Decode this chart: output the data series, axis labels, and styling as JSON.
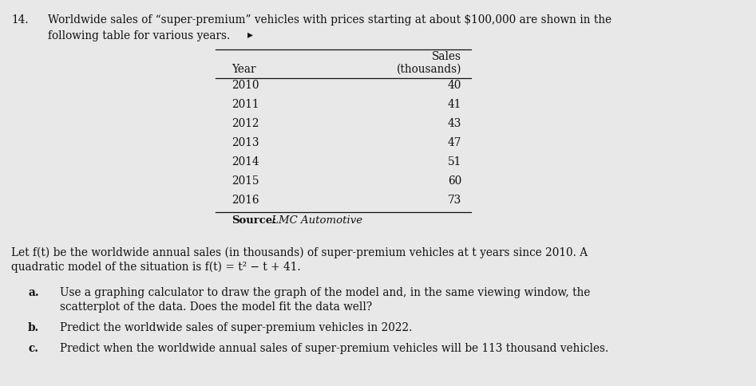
{
  "problem_number": "14.",
  "intro_line1": "Worldwide sales of “super-premium” vehicles with prices starting at about $100,000 are shown in the",
  "intro_line2": "following table for various years.",
  "cursor_symbol": "▸",
  "table_col1_header": "Year",
  "table_col2_header_line1": "Sales",
  "table_col2_header_line2": "(thousands)",
  "table_data": [
    [
      "2010",
      "40"
    ],
    [
      "2011",
      "41"
    ],
    [
      "2012",
      "43"
    ],
    [
      "2013",
      "47"
    ],
    [
      "2014",
      "51"
    ],
    [
      "2015",
      "60"
    ],
    [
      "2016",
      "73"
    ]
  ],
  "source_bold": "Source:",
  "source_italic": " LMC Automotive",
  "body_line1": "Let f(t) be the worldwide annual sales (in thousands) of super-premium vehicles at t years since 2010. A",
  "body_line2": "quadratic model of the situation is f(t) = t² − t + 41.",
  "item_a_label": "a.",
  "item_a_line1": "Use a graphing calculator to draw the graph of the model and, in the same viewing window, the",
  "item_a_line2": "scatterplot of the data. Does the model fit the data well?",
  "item_b_label": "b.",
  "item_b_text": "Predict the worldwide sales of super-premium vehicles in 2022.",
  "item_c_label": "c.",
  "item_c_text": "Predict when the worldwide annual sales of super-premium vehicles will be 113 thousand vehicles.",
  "bg_color": "#e8e8e8",
  "text_color": "#111111",
  "font_size": 9.8,
  "table_font_size": 9.8
}
